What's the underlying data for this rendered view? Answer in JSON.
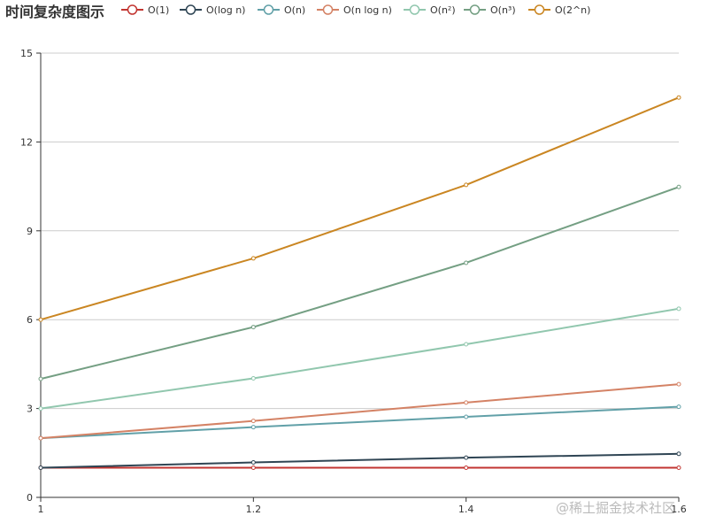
{
  "chart_data": {
    "type": "line",
    "title": "时间复杂度图示",
    "xlabel": "",
    "ylabel": "",
    "x": [
      1,
      1.2,
      1.4,
      1.6
    ],
    "xlim": [
      1,
      1.6
    ],
    "ylim": [
      0,
      15
    ],
    "x_ticks": [
      "1",
      "1.2",
      "1.4",
      "1.6"
    ],
    "y_ticks": [
      "0",
      "3",
      "6",
      "9",
      "12",
      "15"
    ],
    "grid": true,
    "legend_position": "top",
    "series": [
      {
        "name": "O(1)",
        "color": "#c23531",
        "values": [
          1,
          1,
          1,
          1
        ]
      },
      {
        "name": "O(log n)",
        "color": "#2f4554",
        "values": [
          1,
          1.18,
          1.34,
          1.47
        ]
      },
      {
        "name": "O(n)",
        "color": "#61a0a8",
        "values": [
          2,
          2.37,
          2.72,
          3.06
        ]
      },
      {
        "name": "O(n log n)",
        "color": "#d48265",
        "values": [
          2,
          2.58,
          3.2,
          3.82
        ]
      },
      {
        "name": "O(n²)",
        "color": "#91c7ae",
        "values": [
          3,
          4.02,
          5.17,
          6.37
        ]
      },
      {
        "name": "O(n³)",
        "color": "#749f83",
        "values": [
          4,
          5.75,
          7.92,
          10.48
        ]
      },
      {
        "name": "O(2^n)",
        "color": "#ca8622",
        "values": [
          6,
          8.07,
          10.55,
          13.5
        ]
      }
    ]
  },
  "watermark": "@稀土掘金技术社区"
}
